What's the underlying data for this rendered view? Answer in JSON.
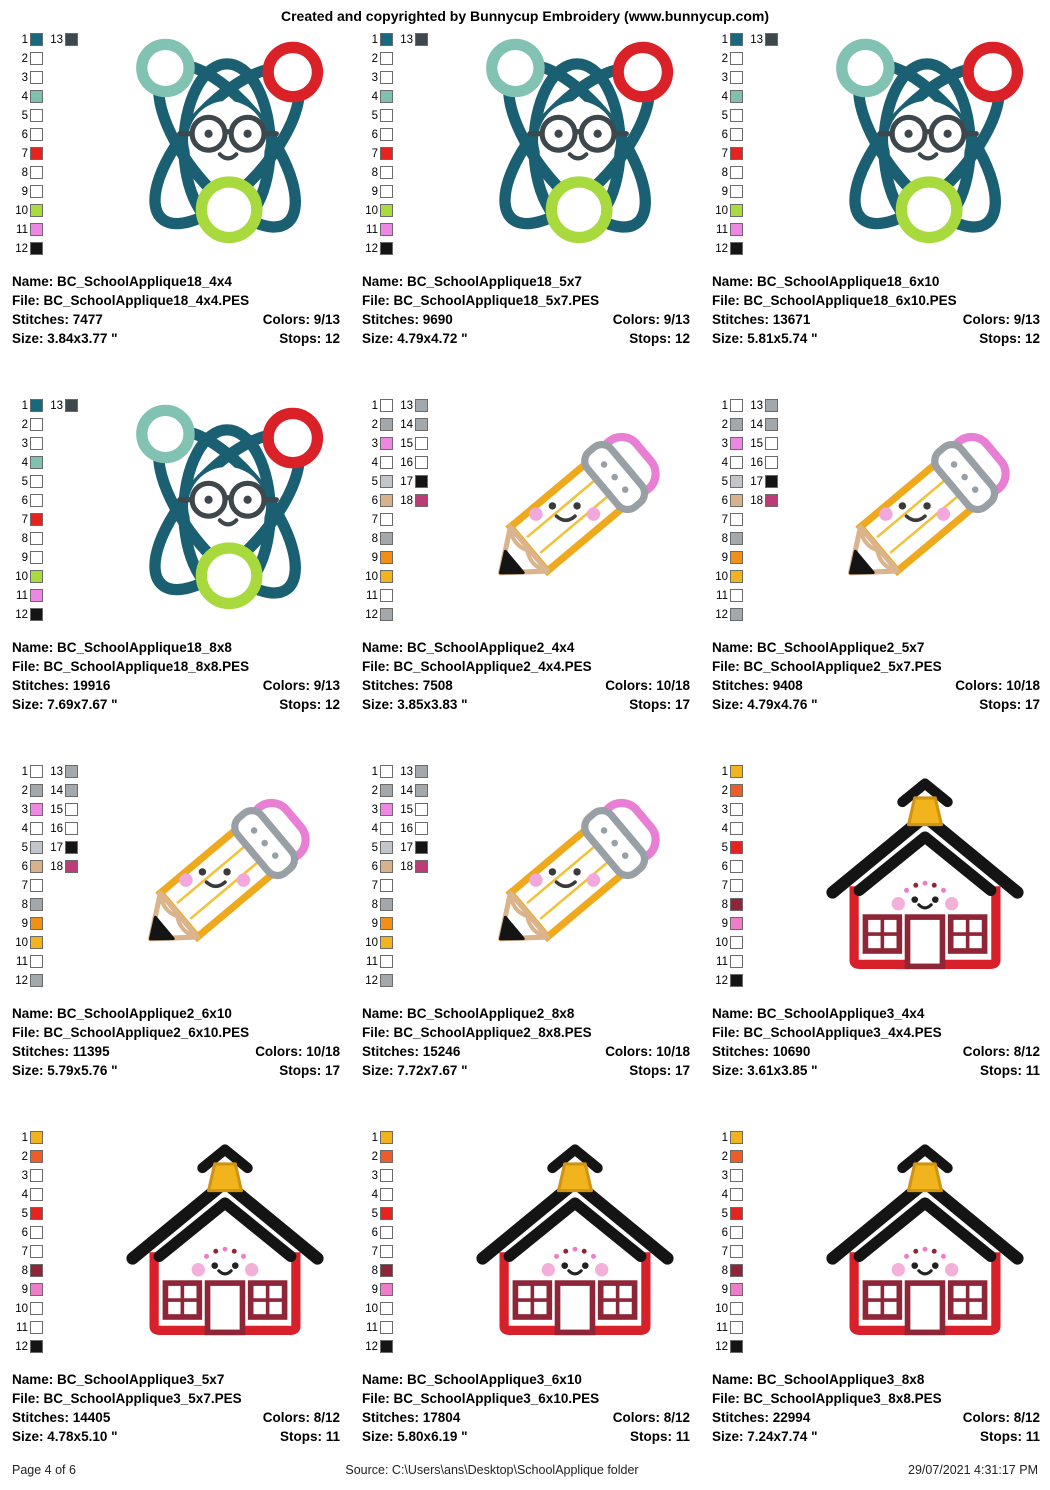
{
  "header": {
    "title": "Created and copyrighted by Bunnycup Embroidery (www.bunnycup.com)"
  },
  "labels": {
    "name": "Name:",
    "file": "File:",
    "stitches": "Stitches:",
    "colors": "Colors:",
    "size": "Size:",
    "stops": "Stops:"
  },
  "palettes": {
    "atom": [
      {
        "n": "1",
        "c": "#17697c",
        "n2": "13",
        "c2": "#3e474c"
      },
      {
        "n": "2",
        "c": "#ffffff"
      },
      {
        "n": "3",
        "c": "#ffffff"
      },
      {
        "n": "4",
        "c": "#80c0b0"
      },
      {
        "n": "5",
        "c": "#ffffff"
      },
      {
        "n": "6",
        "c": "#ffffff"
      },
      {
        "n": "7",
        "c": "#e8221e"
      },
      {
        "n": "8",
        "c": "#ffffff"
      },
      {
        "n": "9",
        "c": "#ffffff"
      },
      {
        "n": "10",
        "c": "#a9dc3d"
      },
      {
        "n": "11",
        "c": "#ee86e4"
      },
      {
        "n": "12",
        "c": "#141414"
      }
    ],
    "pencil": [
      {
        "n": "1",
        "c": "#ffffff",
        "n2": "13",
        "c2": "#a2a8ac"
      },
      {
        "n": "2",
        "c": "#a2a8ac",
        "n2": "14",
        "c2": "#a2a8ac"
      },
      {
        "n": "3",
        "c": "#ee86e4",
        "n2": "15",
        "c2": "#ffffff"
      },
      {
        "n": "4",
        "c": "#ffffff",
        "n2": "16",
        "c2": "#ffffff"
      },
      {
        "n": "5",
        "c": "#c2c6ca",
        "n2": "17",
        "c2": "#141414"
      },
      {
        "n": "6",
        "c": "#d9b28a",
        "n2": "18",
        "c2": "#bc3c78"
      },
      {
        "n": "7",
        "c": "#ffffff"
      },
      {
        "n": "8",
        "c": "#a2a8ac"
      },
      {
        "n": "9",
        "c": "#f09018"
      },
      {
        "n": "10",
        "c": "#f2b41c"
      },
      {
        "n": "11",
        "c": "#ffffff"
      },
      {
        "n": "12",
        "c": "#a2a8ac"
      }
    ],
    "school": [
      {
        "n": "1",
        "c": "#f2b41c"
      },
      {
        "n": "2",
        "c": "#ee5c28"
      },
      {
        "n": "3",
        "c": "#ffffff"
      },
      {
        "n": "4",
        "c": "#ffffff"
      },
      {
        "n": "5",
        "c": "#e8221e"
      },
      {
        "n": "6",
        "c": "#ffffff"
      },
      {
        "n": "7",
        "c": "#ffffff"
      },
      {
        "n": "8",
        "c": "#8e2638"
      },
      {
        "n": "9",
        "c": "#ee7cc8"
      },
      {
        "n": "10",
        "c": "#ffffff"
      },
      {
        "n": "11",
        "c": "#ffffff"
      },
      {
        "n": "12",
        "c": "#141414"
      }
    ]
  },
  "cells": [
    {
      "design": "atom",
      "palette": "atom",
      "name": "BC_SchoolApplique18_4x4",
      "file": "BC_SchoolApplique18_4x4.PES",
      "stitches": "7477",
      "colors": "9/13",
      "size": "3.84x3.77 \"",
      "stops": "12"
    },
    {
      "design": "atom",
      "palette": "atom",
      "name": "BC_SchoolApplique18_5x7",
      "file": "BC_SchoolApplique18_5x7.PES",
      "stitches": "9690",
      "colors": "9/13",
      "size": "4.79x4.72 \"",
      "stops": "12"
    },
    {
      "design": "atom",
      "palette": "atom",
      "name": "BC_SchoolApplique18_6x10",
      "file": "BC_SchoolApplique18_6x10.PES",
      "stitches": "13671",
      "colors": "9/13",
      "size": "5.81x5.74 \"",
      "stops": "12"
    },
    {
      "design": "atom",
      "palette": "atom",
      "name": "BC_SchoolApplique18_8x8",
      "file": "BC_SchoolApplique18_8x8.PES",
      "stitches": "19916",
      "colors": "9/13",
      "size": "7.69x7.67 \"",
      "stops": "12"
    },
    {
      "design": "pencil",
      "palette": "pencil",
      "name": "BC_SchoolApplique2_4x4",
      "file": "BC_SchoolApplique2_4x4.PES",
      "stitches": "7508",
      "colors": "10/18",
      "size": "3.85x3.83 \"",
      "stops": "17"
    },
    {
      "design": "pencil",
      "palette": "pencil",
      "name": "BC_SchoolApplique2_5x7",
      "file": "BC_SchoolApplique2_5x7.PES",
      "stitches": "9408",
      "colors": "10/18",
      "size": "4.79x4.76 \"",
      "stops": "17"
    },
    {
      "design": "pencil",
      "palette": "pencil",
      "name": "BC_SchoolApplique2_6x10",
      "file": "BC_SchoolApplique2_6x10.PES",
      "stitches": "11395",
      "colors": "10/18",
      "size": "5.79x5.76 \"",
      "stops": "17"
    },
    {
      "design": "pencil",
      "palette": "pencil",
      "name": "BC_SchoolApplique2_8x8",
      "file": "BC_SchoolApplique2_8x8.PES",
      "stitches": "15246",
      "colors": "10/18",
      "size": "7.72x7.67 \"",
      "stops": "17"
    },
    {
      "design": "school",
      "palette": "school",
      "name": "BC_SchoolApplique3_4x4",
      "file": "BC_SchoolApplique3_4x4.PES",
      "stitches": "10690",
      "colors": "8/12",
      "size": "3.61x3.85 \"",
      "stops": "11"
    },
    {
      "design": "school",
      "palette": "school",
      "name": "BC_SchoolApplique3_5x7",
      "file": "BC_SchoolApplique3_5x7.PES",
      "stitches": "14405",
      "colors": "8/12",
      "size": "4.78x5.10 \"",
      "stops": "11"
    },
    {
      "design": "school",
      "palette": "school",
      "name": "BC_SchoolApplique3_6x10",
      "file": "BC_SchoolApplique3_6x10.PES",
      "stitches": "17804",
      "colors": "8/12",
      "size": "5.80x6.19 \"",
      "stops": "11"
    },
    {
      "design": "school",
      "palette": "school",
      "name": "BC_SchoolApplique3_8x8",
      "file": "BC_SchoolApplique3_8x8.PES",
      "stitches": "22994",
      "colors": "8/12",
      "size": "7.24x7.74 \"",
      "stops": "11"
    }
  ],
  "footer": {
    "page": "Page 4 of 6",
    "source": "Source: C:\\Users\\ans\\Desktop\\SchoolApplique folder",
    "timestamp": "29/07/2021 4:31:17 PM"
  }
}
